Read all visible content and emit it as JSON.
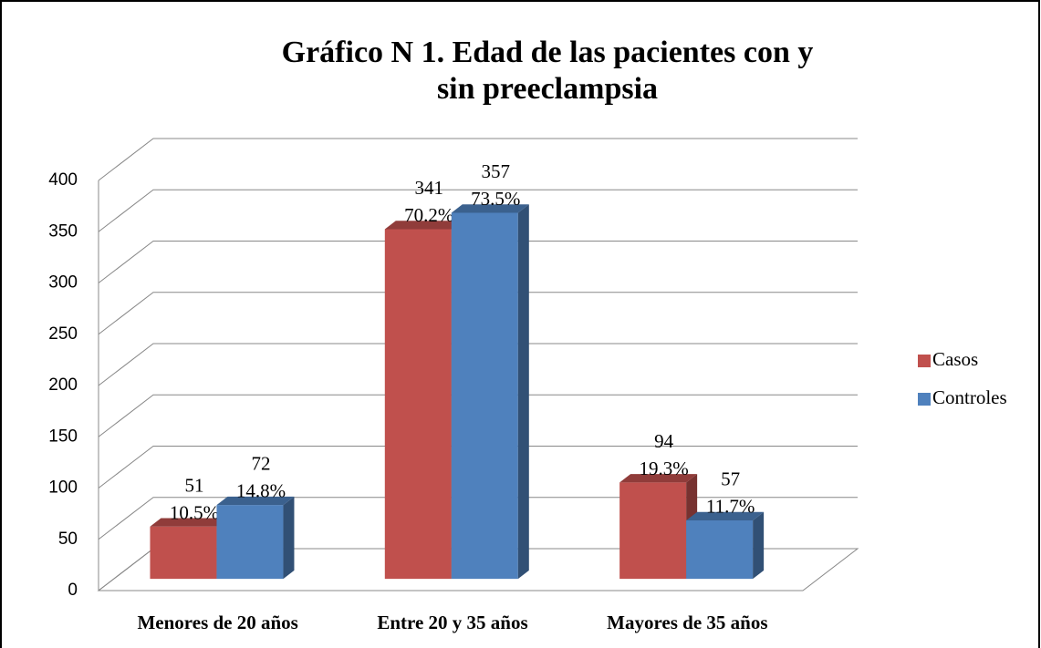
{
  "chart_data": {
    "type": "bar3d",
    "title": "Gráfico N   1. Edad de las pacientes con y sin preeclampsia",
    "categories": [
      "Menores de 20 años",
      "Entre 20 y 35 años",
      "Mayores de 35 años"
    ],
    "series": [
      {
        "name": "Casos",
        "color": "#c0504d",
        "values": [
          51,
          341,
          94
        ],
        "percent_labels": [
          "10.5%",
          "70.2%",
          "19.3%"
        ]
      },
      {
        "name": "Controles",
        "color": "#4f81bd",
        "values": [
          72,
          357,
          57
        ],
        "percent_labels": [
          "14.8%",
          "73.5%",
          "11.7%"
        ]
      }
    ],
    "ylim": [
      0,
      400
    ],
    "yticks": [
      0,
      50,
      100,
      150,
      200,
      250,
      300,
      350,
      400
    ],
    "grid": true,
    "legend": "right"
  }
}
